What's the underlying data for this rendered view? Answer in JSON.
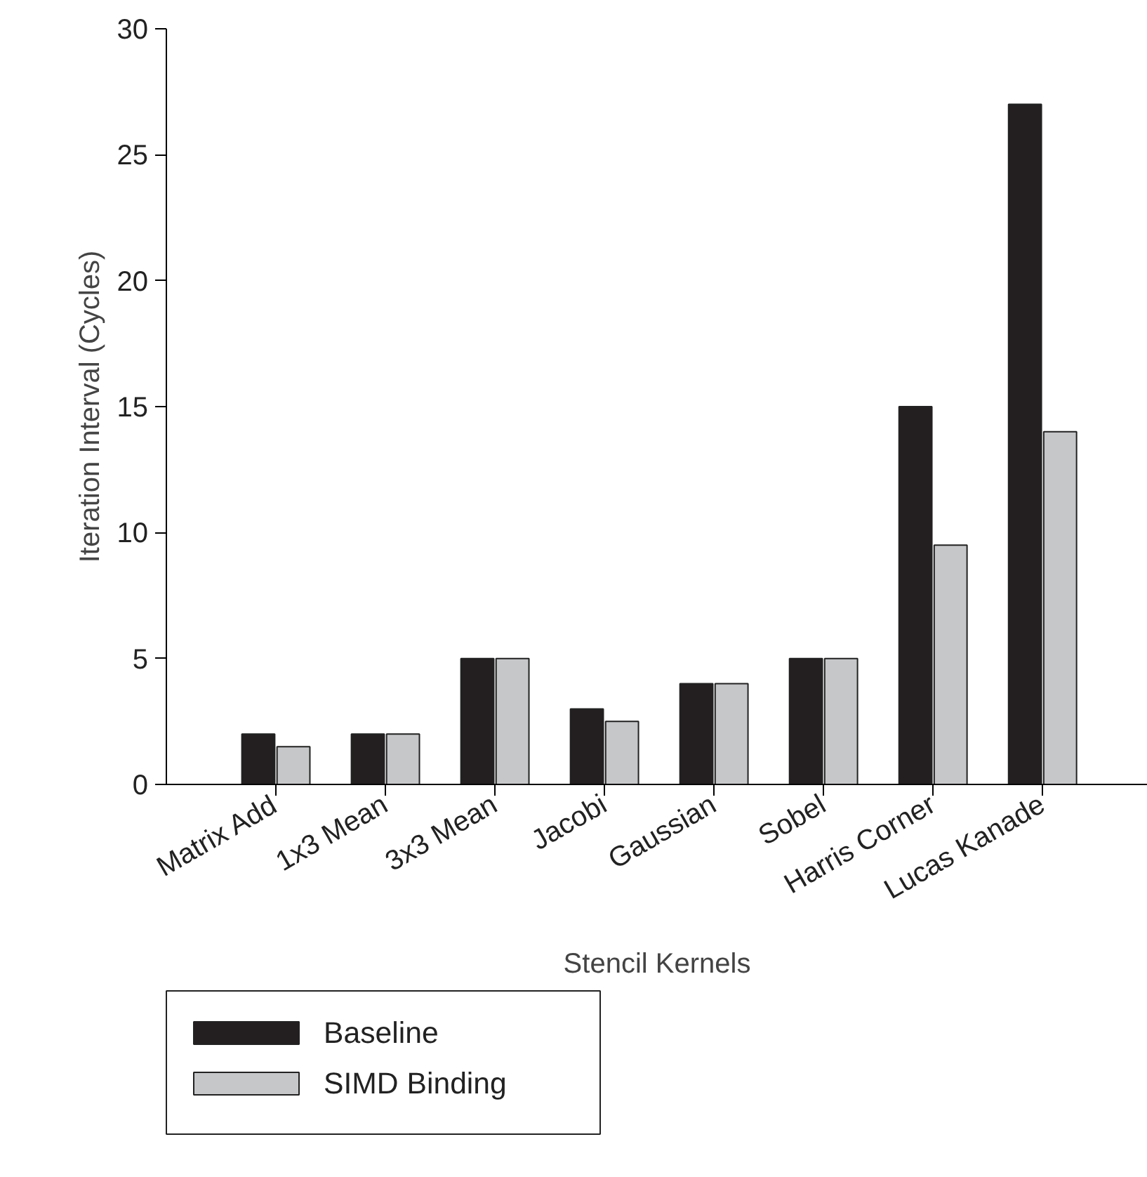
{
  "chart_data": {
    "type": "bar",
    "xlabel": "Stencil Kernels",
    "ylabel": "Iteration Interval (Cycles)",
    "categories": [
      "Matrix Add",
      "1x3 Mean",
      "3x3 Mean",
      "Jacobi",
      "Gaussian",
      "Sobel",
      "Harris Corner",
      "Lucas Kanade"
    ],
    "series": [
      {
        "name": "Baseline",
        "color": "#231f20",
        "values": [
          2,
          2,
          5,
          3,
          4,
          5,
          15,
          27
        ]
      },
      {
        "name": "SIMD Binding",
        "color": "#c6c7c9",
        "values": [
          1.5,
          2,
          5,
          2.5,
          4,
          5,
          9.5,
          14
        ]
      }
    ],
    "ylim": [
      0,
      30
    ],
    "yticks": [
      0,
      5,
      10,
      15,
      20,
      25,
      30
    ],
    "legend": "bottom left"
  }
}
